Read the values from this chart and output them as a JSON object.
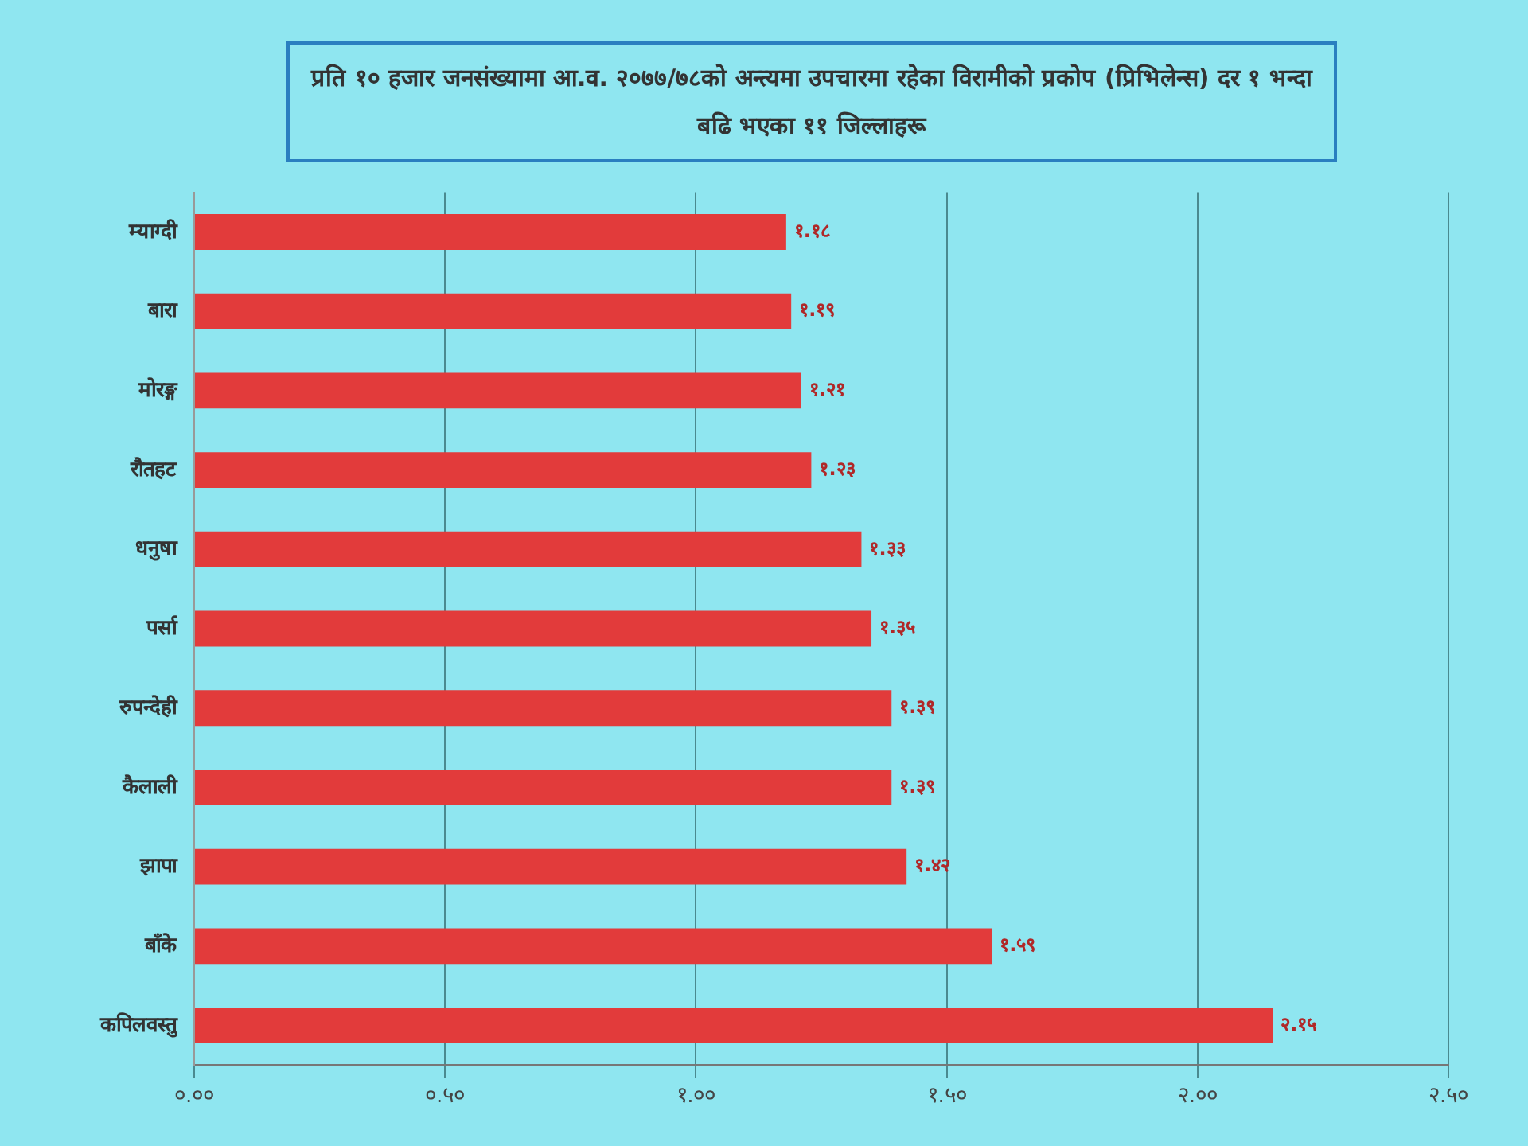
{
  "chart_data": {
    "type": "bar",
    "orientation": "horizontal",
    "title": "प्रति १० हजार जनसंख्यामा आ.व. २०७७/७८को अन्त्यमा उपचारमा रहेका विरामीको प्रकोप (प्रिभिलेन्स) दर १ भन्दा बढि भएका ११ जिल्लाहरू",
    "categories": [
      "म्याग्दी",
      "बारा",
      "मोरङ्ग",
      "रौतहट",
      "धनुषा",
      "पर्सा",
      "रुपन्देही",
      "कैलाली",
      "झापा",
      "बाँके",
      "कपिलवस्तु"
    ],
    "values": [
      1.18,
      1.19,
      1.21,
      1.23,
      1.33,
      1.35,
      1.39,
      1.39,
      1.42,
      1.59,
      2.15
    ],
    "value_labels": [
      "१.१८",
      "१.१९",
      "१.२१",
      "१.२३",
      "१.३३",
      "१.३५",
      "१.३९",
      "१.३९",
      "१.४२",
      "१.५९",
      "२.१५"
    ],
    "color": "#e23b3b",
    "xlim": [
      0,
      2.5
    ],
    "xticks": [
      {
        "value": 0,
        "label": "०.००"
      },
      {
        "value": 0.5,
        "label": "०.५०"
      },
      {
        "value": 1,
        "label": "१.००"
      },
      {
        "value": 1.5,
        "label": "१.५०"
      },
      {
        "value": 2,
        "label": "२.००"
      },
      {
        "value": 2.5,
        "label": "२.५०"
      }
    ],
    "grid": "x"
  }
}
